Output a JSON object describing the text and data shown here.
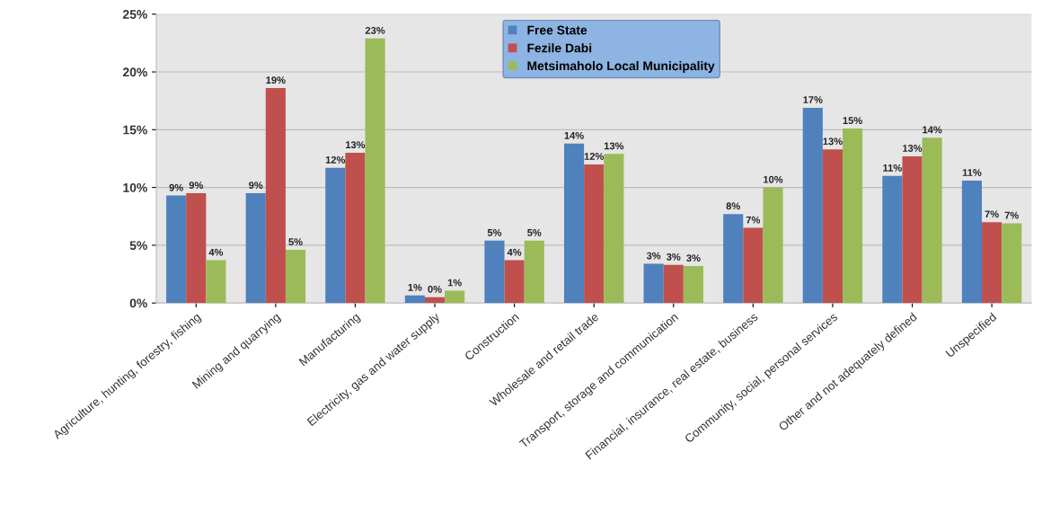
{
  "chart_data": {
    "type": "bar",
    "categories": [
      "Agriculture, hunting, forestry, fishing",
      "Mining and quarrying",
      "Manufacturing",
      "Electricity, gas and water supply",
      "Construction",
      "Wholesale and retail trade",
      "Transport, storage and communication",
      "Financial, insurance, real estate, business",
      "Community, social, personal services",
      "Other and not adequately defined",
      "Unspecified"
    ],
    "series": [
      {
        "name": "Free State",
        "color": "#4f81bd",
        "values": [
          9.3,
          9.5,
          11.7,
          0.66,
          5.4,
          13.8,
          3.4,
          7.7,
          16.9,
          11.0,
          10.6
        ],
        "value_labels": [
          "9%",
          "9%",
          "12%",
          "1%",
          "5%",
          "14%",
          "3%",
          "8%",
          "17%",
          "11%",
          "11%"
        ]
      },
      {
        "name": "Fezile Dabi",
        "color": "#c0504d",
        "values": [
          9.5,
          18.6,
          13.0,
          0.5,
          3.7,
          12.0,
          3.3,
          6.5,
          13.3,
          12.7,
          7.0
        ],
        "value_labels": [
          "9%",
          "19%",
          "13%",
          "0%",
          "4%",
          "12%",
          "3%",
          "7%",
          "13%",
          "13%",
          "7%"
        ]
      },
      {
        "name": "Metsimaholo Local Municipality",
        "color": "#9bbb59",
        "values": [
          3.7,
          4.6,
          22.9,
          1.07,
          5.4,
          12.9,
          3.2,
          10.0,
          15.1,
          14.3,
          6.9
        ],
        "value_labels": [
          "4%",
          "5%",
          "23%",
          "1%",
          "5%",
          "13%",
          "3%",
          "10%",
          "15%",
          "14%",
          "7%"
        ]
      }
    ],
    "ylim": [
      0,
      25
    ],
    "yticks": [
      {
        "value": 0,
        "label": "0%"
      },
      {
        "value": 5,
        "label": "5%"
      },
      {
        "value": 10,
        "label": "10%"
      },
      {
        "value": 15,
        "label": "15%"
      },
      {
        "value": 20,
        "label": "20%"
      },
      {
        "value": 25,
        "label": "25%"
      }
    ],
    "grid": "y",
    "legend": "top"
  }
}
